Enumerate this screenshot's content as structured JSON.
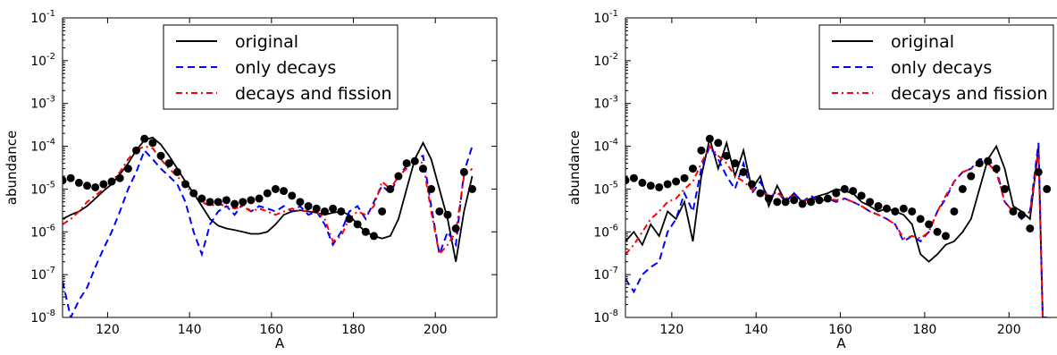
{
  "chart_data": [
    {
      "type": "line",
      "xlabel": "A",
      "ylabel": "abundance",
      "xlim": [
        109,
        215
      ],
      "ylim": [
        1e-08,
        0.1
      ],
      "yscale": "log",
      "xticks": [
        "120",
        "140",
        "160",
        "180",
        "200"
      ],
      "xtick_values": [
        120,
        140,
        160,
        180,
        200
      ],
      "yticks": [
        {
          "base": "10",
          "exp": "-8",
          "value": 1e-08
        },
        {
          "base": "10",
          "exp": "-7",
          "value": 1e-07
        },
        {
          "base": "10",
          "exp": "-6",
          "value": 1e-06
        },
        {
          "base": "10",
          "exp": "-5",
          "value": 1e-05
        },
        {
          "base": "10",
          "exp": "-4",
          "value": 0.0001
        },
        {
          "base": "10",
          "exp": "-3",
          "value": 0.001
        },
        {
          "base": "10",
          "exp": "-2",
          "value": 0.01
        },
        {
          "base": "10",
          "exp": "-1",
          "value": 0.1
        }
      ],
      "legend_position": "top-center",
      "series": [
        {
          "name": "original",
          "style": "solid",
          "color": "#000000",
          "x": [
            109,
            111,
            113,
            115,
            117,
            119,
            121,
            123,
            125,
            127,
            129,
            131,
            133,
            135,
            137,
            139,
            141,
            143,
            145,
            147,
            149,
            151,
            153,
            155,
            157,
            159,
            161,
            163,
            165,
            167,
            169,
            171,
            173,
            175,
            177,
            179,
            181,
            183,
            185,
            187,
            189,
            191,
            193,
            195,
            197,
            199,
            201,
            203,
            205,
            207,
            209
          ],
          "y": [
            2e-06,
            2.5e-06,
            3e-06,
            4e-06,
            6e-06,
            9e-06,
            1.3e-05,
            2.2e-05,
            4e-05,
            8e-05,
            0.00014,
            0.00016,
            0.00011,
            6e-05,
            3e-05,
            1.5e-05,
            8e-06,
            4e-06,
            2e-06,
            1.4e-06,
            1.2e-06,
            1.1e-06,
            1e-06,
            9e-07,
            9e-07,
            1e-06,
            1.5e-06,
            2.5e-06,
            3e-06,
            3.2e-06,
            3e-06,
            2.8e-06,
            2.5e-06,
            2.8e-06,
            3e-06,
            2.5e-06,
            1.5e-06,
            1e-06,
            8e-07,
            7e-07,
            8e-07,
            2e-06,
            1e-05,
            5e-05,
            0.00012,
            5e-05,
            1e-05,
            2e-06,
            2e-07,
            3e-06,
            2e-05
          ]
        },
        {
          "name": "only decays",
          "style": "dashed",
          "color": "#0000ff",
          "x": [
            109,
            111,
            113,
            115,
            117,
            119,
            121,
            123,
            125,
            127,
            129,
            131,
            133,
            135,
            137,
            139,
            141,
            143,
            145,
            147,
            149,
            151,
            153,
            155,
            157,
            159,
            161,
            163,
            165,
            167,
            169,
            171,
            173,
            175,
            177,
            179,
            181,
            183,
            185,
            187,
            189,
            191,
            193,
            195,
            197,
            199,
            201,
            203,
            205,
            207,
            209
          ],
          "y": [
            7e-08,
            1e-08,
            2.5e-08,
            5e-08,
            1.5e-07,
            4e-07,
            1e-06,
            3e-06,
            1e-05,
            2.5e-05,
            8e-05,
            5e-05,
            3e-05,
            2e-05,
            1.3e-05,
            5e-06,
            1e-06,
            3e-07,
            1.5e-06,
            3e-06,
            4e-06,
            2.5e-06,
            4.5e-06,
            3e-06,
            4e-06,
            3.5e-06,
            3e-06,
            4e-06,
            3e-06,
            4e-06,
            2.5e-06,
            3e-06,
            1.5e-06,
            5e-07,
            1e-06,
            3e-06,
            4e-06,
            2e-06,
            5e-06,
            1.2e-05,
            8e-06,
            2e-05,
            3.5e-05,
            5e-05,
            6e-05,
            4e-06,
            3e-07,
            1e-06,
            5e-07,
            2.5e-05,
            0.0001
          ]
        },
        {
          "name": "decays and fission",
          "style": "dashdot",
          "color": "#ff0000",
          "x": [
            109,
            111,
            113,
            115,
            117,
            119,
            121,
            123,
            125,
            127,
            129,
            131,
            133,
            135,
            137,
            139,
            141,
            143,
            145,
            147,
            149,
            151,
            153,
            155,
            157,
            159,
            161,
            163,
            165,
            167,
            169,
            171,
            173,
            175,
            177,
            179,
            181,
            183,
            185,
            187,
            189,
            191,
            193,
            195,
            197,
            199,
            201,
            203,
            205,
            207,
            209
          ],
          "y": [
            1.5e-06,
            2e-06,
            3e-06,
            5e-06,
            7e-06,
            1e-05,
            1.5e-05,
            2.5e-05,
            5e-05,
            8e-05,
            0.0001,
            9e-05,
            5e-05,
            3e-05,
            2e-05,
            1.2e-05,
            8e-06,
            5e-06,
            4e-06,
            4.5e-06,
            4e-06,
            3.5e-06,
            4e-06,
            3e-06,
            3.5e-06,
            3e-06,
            2.5e-06,
            3e-06,
            3.5e-06,
            3e-06,
            3.2e-06,
            3e-06,
            2e-06,
            6e-07,
            8e-07,
            2e-06,
            3e-06,
            2.5e-06,
            4e-06,
            1.5e-05,
            1e-05,
            2e-05,
            3e-05,
            5e-05,
            4e-05,
            3e-06,
            3e-07,
            5e-07,
            1e-06,
            2e-05,
            3e-05
          ]
        },
        {
          "name": "",
          "style": "markers",
          "color": "#000000",
          "x": [
            109,
            111,
            113,
            115,
            117,
            119,
            121,
            123,
            125,
            127,
            129,
            131,
            133,
            135,
            137,
            139,
            141,
            143,
            145,
            147,
            149,
            151,
            153,
            155,
            157,
            159,
            161,
            163,
            165,
            167,
            169,
            171,
            173,
            175,
            177,
            179,
            181,
            183,
            185,
            187,
            189,
            191,
            193,
            195,
            197,
            199,
            201,
            203,
            205,
            207,
            209
          ],
          "y": [
            1.6e-05,
            1.8e-05,
            1.4e-05,
            1.2e-05,
            1.1e-05,
            1.3e-05,
            1.5e-05,
            1.8e-05,
            3e-05,
            8e-05,
            0.00015,
            0.00012,
            6e-05,
            4e-05,
            2.5e-05,
            1.3e-05,
            8e-06,
            6e-06,
            5e-06,
            5e-06,
            5.5e-06,
            4.5e-06,
            5e-06,
            5.5e-06,
            6e-06,
            8e-06,
            1e-05,
            9e-06,
            7e-06,
            5e-06,
            4e-06,
            3.5e-06,
            3e-06,
            3.5e-06,
            3e-06,
            2e-06,
            1.5e-06,
            1e-06,
            8e-07,
            3e-06,
            1e-05,
            2e-05,
            4e-05,
            4.5e-05,
            3e-05,
            1e-05,
            3e-06,
            2.5e-06,
            1.2e-06,
            2.5e-05,
            1e-05
          ]
        }
      ]
    },
    {
      "type": "line",
      "xlabel": "A",
      "ylabel": "abundance",
      "xlim": [
        109,
        215
      ],
      "ylim": [
        1e-08,
        0.1
      ],
      "yscale": "log",
      "xticks": [
        "120",
        "140",
        "160",
        "180",
        "200"
      ],
      "xtick_values": [
        120,
        140,
        160,
        180,
        200
      ],
      "yticks": [
        {
          "base": "10",
          "exp": "-8",
          "value": 1e-08
        },
        {
          "base": "10",
          "exp": "-7",
          "value": 1e-07
        },
        {
          "base": "10",
          "exp": "-6",
          "value": 1e-06
        },
        {
          "base": "10",
          "exp": "-5",
          "value": 1e-05
        },
        {
          "base": "10",
          "exp": "-4",
          "value": 0.0001
        },
        {
          "base": "10",
          "exp": "-3",
          "value": 0.001
        },
        {
          "base": "10",
          "exp": "-2",
          "value": 0.01
        },
        {
          "base": "10",
          "exp": "-1",
          "value": 0.1
        }
      ],
      "legend_position": "top-right",
      "series": [
        {
          "name": "original",
          "style": "solid",
          "color": "#000000",
          "x": [
            109,
            111,
            113,
            115,
            117,
            119,
            121,
            123,
            125,
            127,
            129,
            131,
            133,
            135,
            137,
            139,
            141,
            143,
            145,
            147,
            149,
            151,
            153,
            155,
            157,
            159,
            161,
            163,
            165,
            167,
            169,
            171,
            173,
            175,
            177,
            179,
            181,
            183,
            185,
            187,
            189,
            191,
            193,
            195,
            197,
            199,
            201,
            203,
            205,
            207,
            208,
            209
          ],
          "y": [
            6e-07,
            1e-06,
            5e-07,
            1.5e-06,
            8e-07,
            3e-06,
            2e-06,
            5e-06,
            6e-07,
            2e-05,
            0.00015,
            3e-05,
            0.00012,
            2e-05,
            8e-05,
            1e-05,
            2e-05,
            4e-06,
            1.2e-05,
            5e-06,
            8e-06,
            5e-06,
            6e-06,
            7e-06,
            8e-06,
            1e-05,
            9e-06,
            8e-06,
            5e-06,
            4e-06,
            3e-06,
            3.5e-06,
            3e-06,
            2.5e-06,
            1.5e-06,
            3e-07,
            2e-07,
            3e-07,
            5e-07,
            6e-07,
            1e-06,
            2e-06,
            1e-05,
            5e-05,
            0.0001,
            3e-05,
            4e-06,
            3e-06,
            2e-06,
            0.0001,
            1e-08,
            1e-08
          ]
        },
        {
          "name": "only decays",
          "style": "dashed",
          "color": "#0000ff",
          "x": [
            109,
            111,
            113,
            115,
            117,
            119,
            121,
            123,
            125,
            127,
            129,
            131,
            133,
            135,
            137,
            139,
            141,
            143,
            145,
            147,
            149,
            151,
            153,
            155,
            157,
            159,
            161,
            163,
            165,
            167,
            169,
            171,
            173,
            175,
            177,
            179,
            181,
            183,
            185,
            187,
            189,
            191,
            193,
            195,
            197,
            199,
            201,
            203,
            205,
            207,
            208,
            209
          ],
          "y": [
            8e-08,
            4e-08,
            1e-07,
            1.5e-07,
            2e-07,
            1e-06,
            2e-06,
            8e-06,
            3e-06,
            3e-05,
            0.0001,
            5e-05,
            2e-05,
            1e-05,
            4e-05,
            8e-06,
            1.5e-05,
            6e-06,
            9e-06,
            5e-06,
            8e-06,
            5e-06,
            7e-06,
            5e-06,
            6e-06,
            5e-06,
            6e-06,
            5e-06,
            4e-06,
            3e-06,
            2.5e-06,
            2e-06,
            1.5e-06,
            6e-07,
            8e-07,
            6e-07,
            1e-06,
            3e-06,
            6e-06,
            1.5e-05,
            2.5e-05,
            3e-05,
            5e-05,
            5e-05,
            3e-05,
            5e-06,
            3e-06,
            2e-06,
            3e-06,
            0.00012,
            1e-08,
            1e-08
          ]
        },
        {
          "name": "decays and fission",
          "style": "dashdot",
          "color": "#ff0000",
          "x": [
            109,
            111,
            113,
            115,
            117,
            119,
            121,
            123,
            125,
            127,
            129,
            131,
            133,
            135,
            137,
            139,
            141,
            143,
            145,
            147,
            149,
            151,
            153,
            155,
            157,
            159,
            161,
            163,
            165,
            167,
            169,
            171,
            173,
            175,
            177,
            179,
            181,
            183,
            185,
            187,
            189,
            191,
            193,
            195,
            197,
            199,
            201,
            203,
            205,
            207,
            208,
            209
          ],
          "y": [
            3e-07,
            5e-07,
            1e-06,
            2e-06,
            3e-06,
            5e-06,
            6e-06,
            1e-05,
            1.5e-05,
            4e-05,
            0.0001,
            6e-05,
            4e-05,
            2e-05,
            1.5e-05,
            1e-05,
            9e-06,
            7e-06,
            8e-06,
            6e-06,
            7e-06,
            5e-06,
            6e-06,
            5e-06,
            6e-06,
            5.5e-06,
            6e-06,
            5e-06,
            4e-06,
            3e-06,
            2.5e-06,
            2e-06,
            1.5e-06,
            7e-07,
            8e-07,
            7e-07,
            1e-06,
            3e-06,
            7e-06,
            1.5e-05,
            2.5e-05,
            3e-05,
            4e-05,
            4e-05,
            2.5e-05,
            5e-06,
            3e-06,
            2.5e-06,
            3e-06,
            7e-05,
            1e-08,
            1e-08
          ]
        },
        {
          "name": "",
          "style": "markers",
          "color": "#000000",
          "x": [
            109,
            111,
            113,
            115,
            117,
            119,
            121,
            123,
            125,
            127,
            129,
            131,
            133,
            135,
            137,
            139,
            141,
            143,
            145,
            147,
            149,
            151,
            153,
            155,
            157,
            159,
            161,
            163,
            165,
            167,
            169,
            171,
            173,
            175,
            177,
            179,
            181,
            183,
            185,
            187,
            189,
            191,
            193,
            195,
            197,
            199,
            201,
            203,
            205,
            207,
            209
          ],
          "y": [
            1.6e-05,
            1.8e-05,
            1.4e-05,
            1.2e-05,
            1.1e-05,
            1.3e-05,
            1.5e-05,
            1.8e-05,
            3e-05,
            8e-05,
            0.00015,
            0.00012,
            6e-05,
            4e-05,
            2.5e-05,
            1.3e-05,
            8e-06,
            6e-06,
            5e-06,
            5e-06,
            5.5e-06,
            4.5e-06,
            5e-06,
            5.5e-06,
            6e-06,
            8e-06,
            1e-05,
            9e-06,
            7e-06,
            5e-06,
            4e-06,
            3.5e-06,
            3e-06,
            3.5e-06,
            3e-06,
            2e-06,
            1.5e-06,
            1e-06,
            8e-07,
            3e-06,
            1e-05,
            2e-05,
            4e-05,
            4.5e-05,
            3e-05,
            1e-05,
            3e-06,
            2.5e-06,
            1.2e-06,
            2.5e-05,
            1e-05
          ]
        }
      ]
    }
  ]
}
